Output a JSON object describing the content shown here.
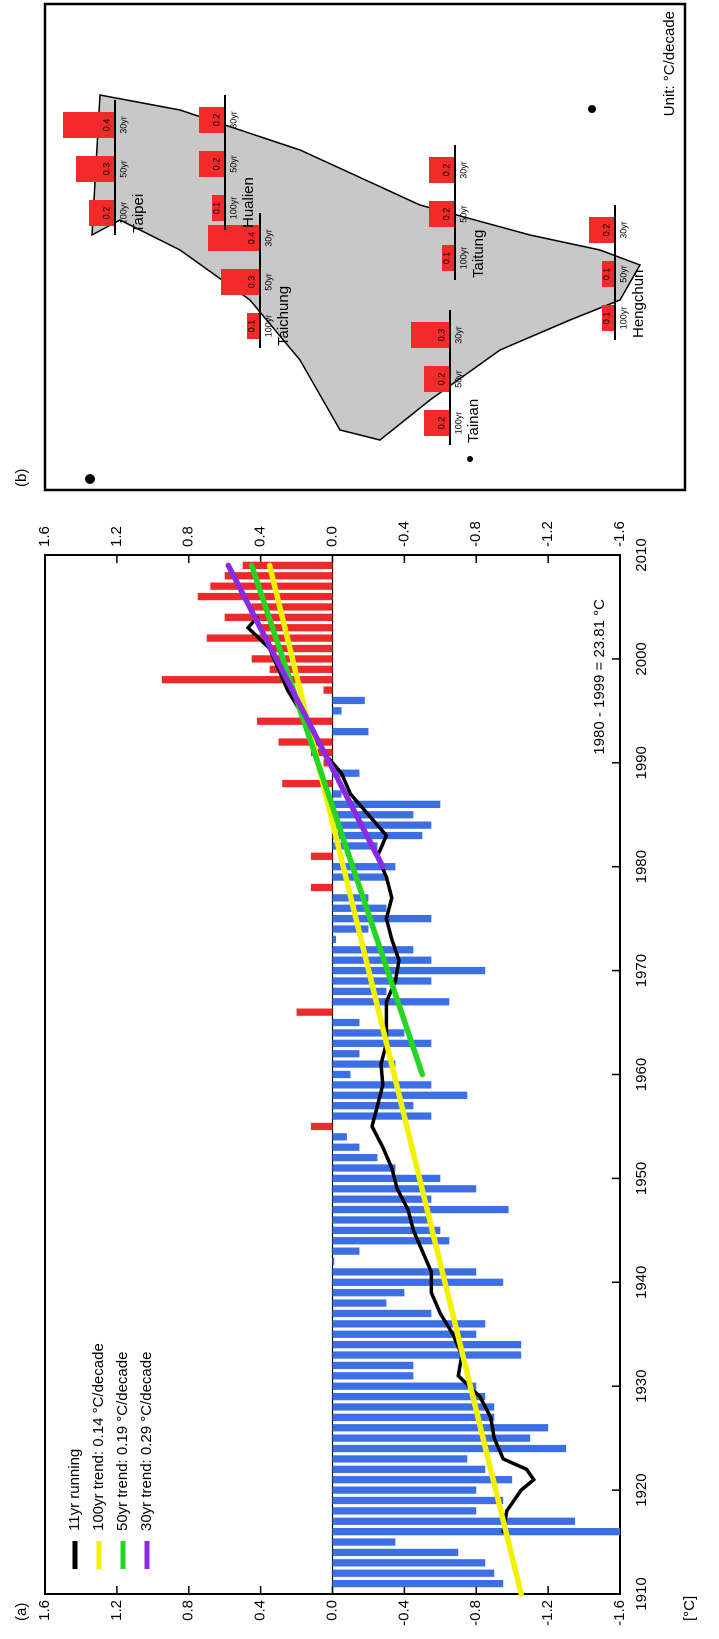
{
  "chart_data": [
    {
      "type": "bar",
      "label": "(a)",
      "ylabel": "[°C]",
      "annotation": "1980 - 1999 = 23.81 °C",
      "x": [
        1911,
        1912,
        1913,
        1914,
        1915,
        1916,
        1917,
        1918,
        1919,
        1920,
        1921,
        1922,
        1923,
        1924,
        1925,
        1926,
        1927,
        1928,
        1929,
        1930,
        1931,
        1932,
        1933,
        1934,
        1935,
        1936,
        1937,
        1938,
        1939,
        1940,
        1941,
        1942,
        1943,
        1944,
        1945,
        1946,
        1947,
        1948,
        1949,
        1950,
        1951,
        1952,
        1953,
        1954,
        1955,
        1956,
        1957,
        1958,
        1959,
        1960,
        1961,
        1962,
        1963,
        1964,
        1965,
        1966,
        1967,
        1968,
        1969,
        1970,
        1971,
        1972,
        1973,
        1974,
        1975,
        1976,
        1977,
        1978,
        1979,
        1980,
        1981,
        1982,
        1983,
        1984,
        1985,
        1986,
        1987,
        1988,
        1989,
        1990,
        1991,
        1992,
        1993,
        1994,
        1995,
        1996,
        1997,
        1998,
        1999,
        2000,
        2001,
        2002,
        2003,
        2004,
        2005,
        2006,
        2007,
        2008,
        2009
      ],
      "values": [
        -0.95,
        -0.9,
        -0.85,
        -0.7,
        -0.35,
        -1.6,
        -1.35,
        -0.8,
        -0.95,
        -0.8,
        -1.0,
        -0.85,
        -0.75,
        -1.3,
        -1.1,
        -1.2,
        -0.9,
        -0.9,
        -0.85,
        -0.8,
        -0.45,
        -0.45,
        -1.05,
        -1.05,
        -0.8,
        -0.85,
        -0.55,
        -0.3,
        -0.4,
        -0.95,
        -0.8,
        -0.01,
        -0.15,
        -0.65,
        -0.6,
        -0.55,
        -0.98,
        -0.55,
        -0.8,
        -0.6,
        -0.35,
        -0.25,
        -0.15,
        -0.08,
        0.12,
        -0.55,
        -0.45,
        -0.75,
        -0.55,
        -0.1,
        -0.35,
        -0.15,
        -0.55,
        -0.4,
        -0.15,
        0.2,
        -0.65,
        -0.3,
        -0.55,
        -0.85,
        -0.55,
        -0.45,
        -0.02,
        -0.2,
        -0.55,
        -0.3,
        -0.2,
        0.12,
        -0.3,
        -0.35,
        0.12,
        -0.25,
        -0.5,
        -0.55,
        -0.45,
        -0.6,
        -0.05,
        0.28,
        -0.15,
        0.05,
        0.12,
        0.3,
        -0.2,
        0.42,
        -0.05,
        -0.18,
        0.05,
        0.95,
        0.35,
        0.45,
        0.35,
        0.7,
        0.4,
        0.6,
        0.45,
        0.75,
        0.68,
        0.6,
        0.5
      ],
      "positive_color": "#ec2a2a",
      "negative_color": "#3b6fe3",
      "series": [
        {
          "name": "11yr running",
          "color": "#000000",
          "x": [
            1916,
            1918,
            1920,
            1921,
            1922,
            1923,
            1925,
            1927,
            1929,
            1931,
            1933,
            1935,
            1937,
            1939,
            1941,
            1943,
            1945,
            1947,
            1949,
            1951,
            1953,
            1955,
            1957,
            1959,
            1961,
            1963,
            1965,
            1967,
            1969,
            1971,
            1973,
            1975,
            1977,
            1979,
            1981,
            1983,
            1985,
            1987,
            1989,
            1991,
            1993,
            1995,
            1997,
            1999,
            2001,
            2003,
            2004
          ],
          "values": [
            -0.95,
            -0.97,
            -1.05,
            -1.12,
            -1.08,
            -0.95,
            -0.9,
            -0.88,
            -0.82,
            -0.7,
            -0.72,
            -0.67,
            -0.6,
            -0.55,
            -0.55,
            -0.5,
            -0.45,
            -0.42,
            -0.36,
            -0.33,
            -0.28,
            -0.22,
            -0.25,
            -0.28,
            -0.27,
            -0.3,
            -0.3,
            -0.3,
            -0.35,
            -0.37,
            -0.33,
            -0.3,
            -0.33,
            -0.3,
            -0.25,
            -0.3,
            -0.2,
            -0.1,
            -0.05,
            0.05,
            0.12,
            0.18,
            0.25,
            0.3,
            0.35,
            0.47,
            0.42
          ]
        },
        {
          "name": "100yr trend:  0.14 °C/decade",
          "color": "#f2f200",
          "x": [
            1910,
            2009
          ],
          "values": [
            -1.05,
            0.35
          ]
        },
        {
          "name": "50yr trend:  0.19 °C/decade",
          "color": "#22d622",
          "x": [
            1960,
            2009
          ],
          "values": [
            -0.5,
            0.45
          ]
        },
        {
          "name": "30yr trend:  0.29 °C/decade",
          "color": "#8a2be2",
          "x": [
            1980,
            2009
          ],
          "values": [
            -0.28,
            0.58
          ]
        }
      ],
      "xlim": [
        1910,
        2010
      ],
      "xticks": [
        1910,
        1920,
        1930,
        1940,
        1950,
        1960,
        1970,
        1980,
        1990,
        2000,
        2010
      ],
      "ylim": [
        -1.6,
        1.6
      ],
      "yticks": [
        1.6,
        1.2,
        0.8,
        0.4,
        {
          "value": 0,
          "label": "0.0"
        },
        -0.4,
        -0.8,
        -1.2,
        -1.6
      ],
      "y2lim": [
        -1.6,
        1.6
      ],
      "y2ticks": [
        1.6,
        1.2,
        0.8,
        0.4,
        {
          "value": 0,
          "label": "0.0"
        },
        -0.4,
        -0.8,
        -1.2,
        -1.6
      ],
      "legend": "upper left"
    },
    {
      "type": "map_bar",
      "label": "(b)",
      "unit_label": "Unit: °C/decade",
      "color": "#f22a2a",
      "categories": [
        "100yr",
        "50yr",
        "30yr"
      ],
      "stations": [
        {
          "name": "Taipei",
          "values": [
            0.2,
            0.3,
            0.4
          ]
        },
        {
          "name": "Taichung",
          "values": [
            0.1,
            0.3,
            0.4
          ]
        },
        {
          "name": "Tainan",
          "values": [
            0.2,
            0.2,
            0.3
          ]
        },
        {
          "name": "Hengchun",
          "values": [
            0.1,
            0.1,
            0.2
          ]
        },
        {
          "name": "Hualien",
          "values": [
            0.1,
            0.2,
            0.2
          ]
        },
        {
          "name": "Taitung",
          "values": [
            0.1,
            0.2,
            0.2
          ]
        }
      ]
    }
  ]
}
